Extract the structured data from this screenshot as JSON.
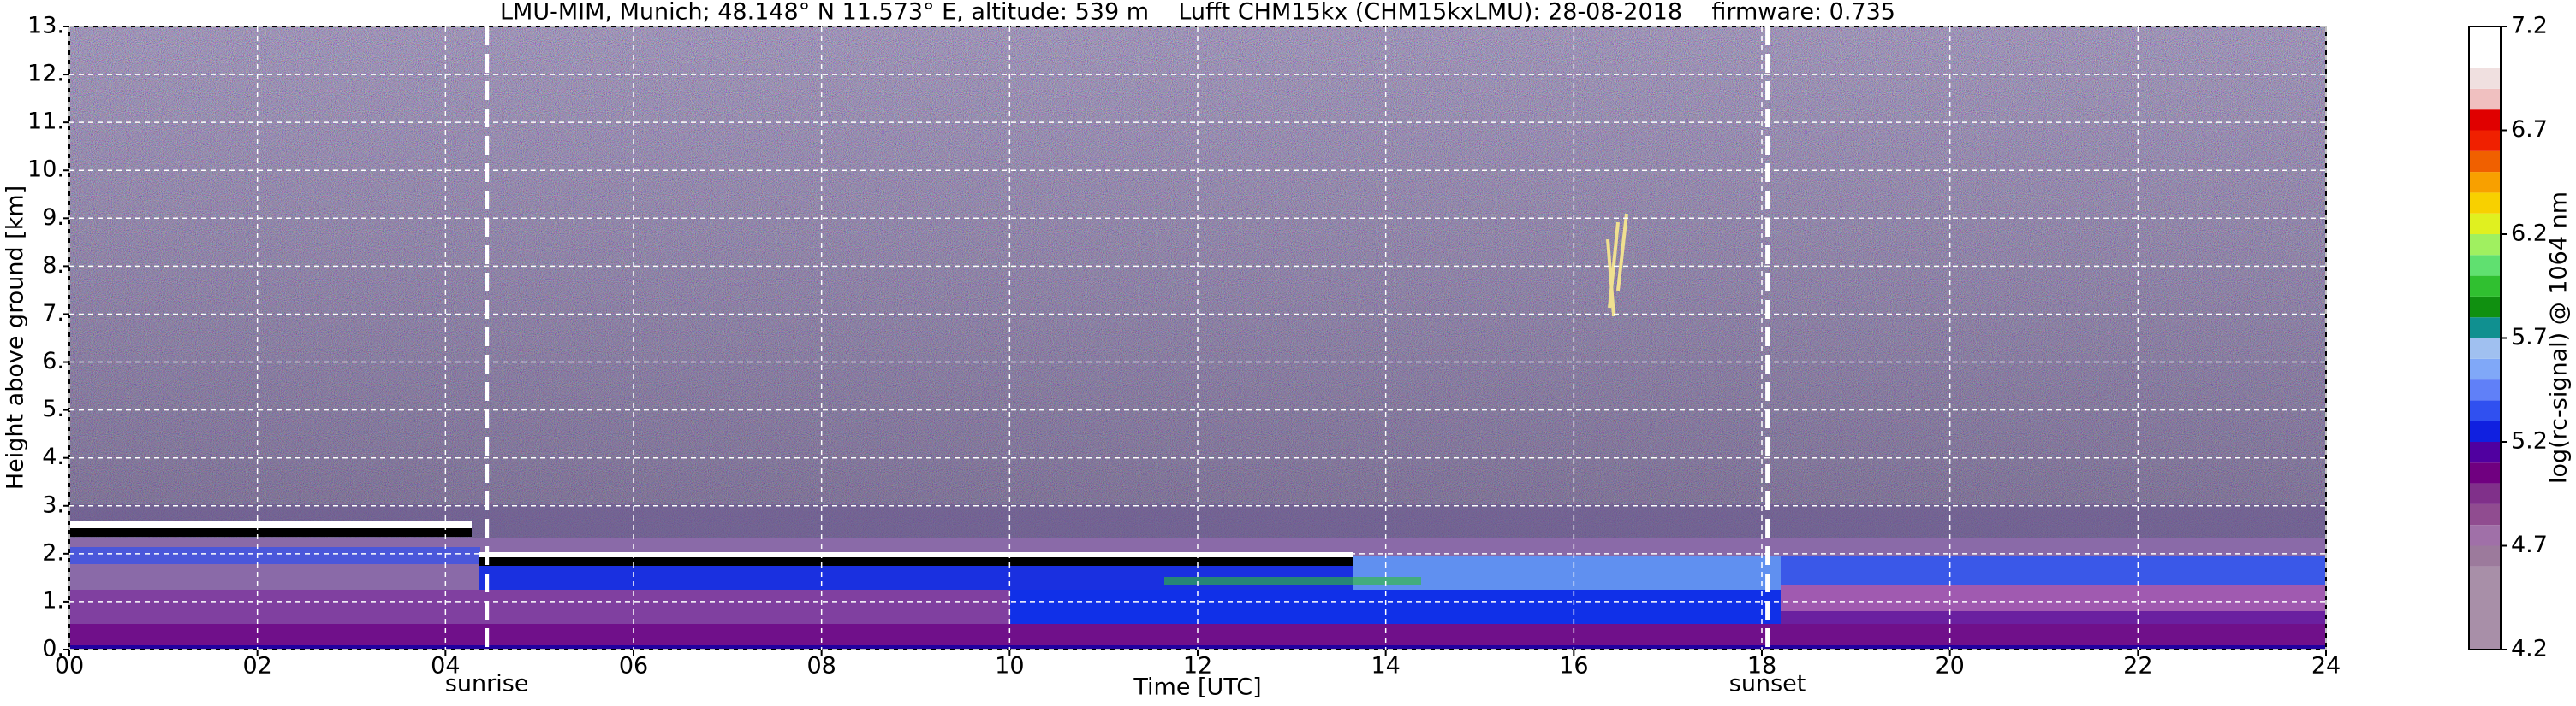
{
  "chart_data": {
    "type": "heatmap",
    "title": "LMU-MIM, Munich; 48.148° N 11.573° E, altitude: 539 m    Lufft CHM15kx (CHM15kxLMU): 28-08-2018    firmware: 0.735",
    "xlabel": "Time [UTC]",
    "ylabel": "Height above ground [km]",
    "xlim": [
      0,
      24
    ],
    "ylim": [
      0,
      13
    ],
    "xticks": [
      {
        "value": 0,
        "label": "00"
      },
      {
        "value": 2,
        "label": "02"
      },
      {
        "value": 4,
        "label": "04"
      },
      {
        "value": 6,
        "label": "06"
      },
      {
        "value": 8,
        "label": "08"
      },
      {
        "value": 10,
        "label": "10"
      },
      {
        "value": 12,
        "label": "12"
      },
      {
        "value": 14,
        "label": "14"
      },
      {
        "value": 16,
        "label": "16"
      },
      {
        "value": 18,
        "label": "18"
      },
      {
        "value": 20,
        "label": "20"
      },
      {
        "value": 22,
        "label": "22"
      },
      {
        "value": 24,
        "label": "24"
      }
    ],
    "yticks": [
      {
        "value": 0,
        "label": "0."
      },
      {
        "value": 1,
        "label": "1."
      },
      {
        "value": 2,
        "label": "2."
      },
      {
        "value": 3,
        "label": "3."
      },
      {
        "value": 4,
        "label": "4."
      },
      {
        "value": 5,
        "label": "5."
      },
      {
        "value": 6,
        "label": "6."
      },
      {
        "value": 7,
        "label": "7."
      },
      {
        "value": 8,
        "label": "8."
      },
      {
        "value": 9,
        "label": "9."
      },
      {
        "value": 10,
        "label": "10."
      },
      {
        "value": 11,
        "label": "11."
      },
      {
        "value": 12,
        "label": "12."
      },
      {
        "value": 13,
        "label": "13."
      }
    ],
    "grid": true,
    "annotations": [
      {
        "label": "sunrise",
        "x": 4.44
      },
      {
        "label": "sunset",
        "x": 18.06
      }
    ],
    "colorbar": {
      "label": "log(rc-signal) @ 1064 nm",
      "lim": [
        4.2,
        7.2
      ],
      "ticks": [
        4.2,
        4.7,
        5.2,
        5.7,
        6.2,
        6.7,
        7.2
      ],
      "bounds": [
        4.2,
        4.6,
        4.7,
        4.8,
        4.9,
        5.0,
        5.1,
        5.2,
        5.3,
        5.4,
        5.5,
        5.6,
        5.7,
        5.8,
        5.9,
        6.0,
        6.1,
        6.2,
        6.3,
        6.4,
        6.5,
        6.6,
        6.7,
        6.8,
        6.9,
        7.0,
        7.2
      ],
      "colors": [
        "#a88fa8",
        "#9c7a9c",
        "#a070a8",
        "#904c90",
        "#80308a",
        "#700080",
        "#5000a0",
        "#1020e0",
        "#3050f0",
        "#6080f8",
        "#80a8f8",
        "#a0c0f0",
        "#109090",
        "#109010",
        "#30c030",
        "#60e070",
        "#a0f060",
        "#e0f020",
        "#f8d000",
        "#f8a000",
        "#f06000",
        "#f02000",
        "#e00000",
        "#f0c0c0",
        "#f0e0e0",
        "#ffffff"
      ]
    }
  }
}
